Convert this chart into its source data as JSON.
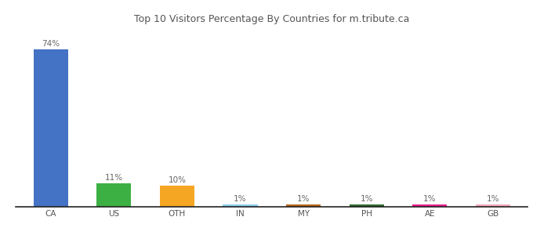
{
  "categories": [
    "CA",
    "US",
    "OTH",
    "IN",
    "MY",
    "PH",
    "AE",
    "GB"
  ],
  "values": [
    74,
    11,
    10,
    1,
    1,
    1,
    1,
    1
  ],
  "labels": [
    "74%",
    "11%",
    "10%",
    "1%",
    "1%",
    "1%",
    "1%",
    "1%"
  ],
  "bar_colors": [
    "#4472c4",
    "#3cb043",
    "#f5a623",
    "#87ceeb",
    "#b5651d",
    "#2e6b2e",
    "#e91e8c",
    "#f4a7b9"
  ],
  "title": "Top 10 Visitors Percentage By Countries for m.tribute.ca",
  "title_fontsize": 9,
  "label_fontsize": 7.5,
  "tick_fontsize": 7.5,
  "background_color": "#ffffff",
  "ylim": [
    0,
    84
  ],
  "bar_width": 0.55
}
